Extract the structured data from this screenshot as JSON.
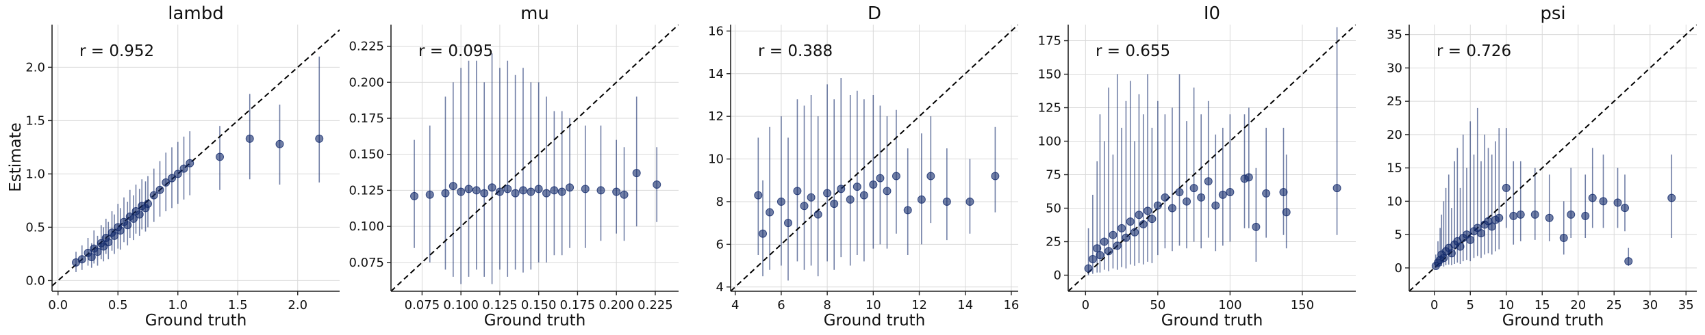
{
  "figure": {
    "xlabel": "Ground truth",
    "ylabel": "Estimate",
    "point_color": "#12296b",
    "line_color": "#12296b",
    "diag_color": "#000000",
    "grid_color": "#d9d9d9"
  },
  "chart_data": [
    {
      "type": "scatter",
      "title": "lambd",
      "r_text": "r = 0.952",
      "xlim": [
        -0.05,
        2.35
      ],
      "ylim": [
        -0.1,
        2.4
      ],
      "xticks": [
        0.0,
        0.5,
        1.0,
        1.5,
        2.0
      ],
      "xtick_labels": [
        "0.0",
        "0.5",
        "1.0",
        "1.5",
        "2.0"
      ],
      "yticks": [
        0.0,
        0.5,
        1.0,
        1.5,
        2.0
      ],
      "ytick_labels": [
        "0.0",
        "0.5",
        "1.0",
        "1.5",
        "2.0"
      ],
      "grid": true,
      "points": [
        {
          "x": 0.15,
          "y": 0.17,
          "lo": 0.08,
          "hi": 0.27
        },
        {
          "x": 0.2,
          "y": 0.2,
          "lo": 0.1,
          "hi": 0.33
        },
        {
          "x": 0.25,
          "y": 0.26,
          "lo": 0.14,
          "hi": 0.4
        },
        {
          "x": 0.28,
          "y": 0.22,
          "lo": 0.12,
          "hi": 0.35
        },
        {
          "x": 0.3,
          "y": 0.3,
          "lo": 0.16,
          "hi": 0.47
        },
        {
          "x": 0.33,
          "y": 0.27,
          "lo": 0.14,
          "hi": 0.42
        },
        {
          "x": 0.36,
          "y": 0.35,
          "lo": 0.2,
          "hi": 0.52
        },
        {
          "x": 0.38,
          "y": 0.32,
          "lo": 0.18,
          "hi": 0.5
        },
        {
          "x": 0.4,
          "y": 0.4,
          "lo": 0.25,
          "hi": 0.58
        },
        {
          "x": 0.42,
          "y": 0.36,
          "lo": 0.2,
          "hi": 0.55
        },
        {
          "x": 0.45,
          "y": 0.45,
          "lo": 0.28,
          "hi": 0.65
        },
        {
          "x": 0.47,
          "y": 0.42,
          "lo": 0.25,
          "hi": 0.62
        },
        {
          "x": 0.5,
          "y": 0.5,
          "lo": 0.3,
          "hi": 0.72
        },
        {
          "x": 0.52,
          "y": 0.47,
          "lo": 0.29,
          "hi": 0.68
        },
        {
          "x": 0.55,
          "y": 0.55,
          "lo": 0.36,
          "hi": 0.78
        },
        {
          "x": 0.58,
          "y": 0.52,
          "lo": 0.33,
          "hi": 0.74
        },
        {
          "x": 0.6,
          "y": 0.6,
          "lo": 0.4,
          "hi": 0.85
        },
        {
          "x": 0.63,
          "y": 0.58,
          "lo": 0.38,
          "hi": 0.8
        },
        {
          "x": 0.65,
          "y": 0.65,
          "lo": 0.44,
          "hi": 0.9
        },
        {
          "x": 0.68,
          "y": 0.62,
          "lo": 0.42,
          "hi": 0.86
        },
        {
          "x": 0.7,
          "y": 0.7,
          "lo": 0.48,
          "hi": 0.95
        },
        {
          "x": 0.73,
          "y": 0.68,
          "lo": 0.46,
          "hi": 0.93
        },
        {
          "x": 0.75,
          "y": 0.72,
          "lo": 0.5,
          "hi": 0.98
        },
        {
          "x": 0.8,
          "y": 0.8,
          "lo": 0.55,
          "hi": 1.05
        },
        {
          "x": 0.85,
          "y": 0.85,
          "lo": 0.6,
          "hi": 1.12
        },
        {
          "x": 0.9,
          "y": 0.92,
          "lo": 0.65,
          "hi": 1.2
        },
        {
          "x": 0.95,
          "y": 0.96,
          "lo": 0.68,
          "hi": 1.25
        },
        {
          "x": 1.0,
          "y": 1.0,
          "lo": 0.72,
          "hi": 1.3
        },
        {
          "x": 1.05,
          "y": 1.05,
          "lo": 0.76,
          "hi": 1.35
        },
        {
          "x": 1.1,
          "y": 1.1,
          "lo": 0.8,
          "hi": 1.4
        },
        {
          "x": 1.35,
          "y": 1.16,
          "lo": 0.85,
          "hi": 1.45
        },
        {
          "x": 1.6,
          "y": 1.33,
          "lo": 0.95,
          "hi": 1.75
        },
        {
          "x": 1.85,
          "y": 1.28,
          "lo": 0.9,
          "hi": 1.65
        },
        {
          "x": 2.18,
          "y": 1.33,
          "lo": 0.92,
          "hi": 2.1
        }
      ]
    },
    {
      "type": "scatter",
      "title": "mu",
      "r_text": "r = 0.095",
      "xlim": [
        0.055,
        0.24
      ],
      "ylim": [
        0.055,
        0.24
      ],
      "xticks": [
        0.075,
        0.1,
        0.125,
        0.15,
        0.175,
        0.2,
        0.225
      ],
      "xtick_labels": [
        "0.075",
        "0.100",
        "0.125",
        "0.150",
        "0.175",
        "0.200",
        "0.225"
      ],
      "yticks": [
        0.075,
        0.1,
        0.125,
        0.15,
        0.175,
        0.2,
        0.225
      ],
      "ytick_labels": [
        "0.075",
        "0.100",
        "0.125",
        "0.150",
        "0.175",
        "0.200",
        "0.225"
      ],
      "grid": true,
      "points": [
        {
          "x": 0.07,
          "y": 0.121,
          "lo": 0.085,
          "hi": 0.16
        },
        {
          "x": 0.08,
          "y": 0.122,
          "lo": 0.075,
          "hi": 0.17
        },
        {
          "x": 0.09,
          "y": 0.123,
          "lo": 0.07,
          "hi": 0.19
        },
        {
          "x": 0.095,
          "y": 0.128,
          "lo": 0.065,
          "hi": 0.2
        },
        {
          "x": 0.1,
          "y": 0.124,
          "lo": 0.06,
          "hi": 0.21
        },
        {
          "x": 0.105,
          "y": 0.126,
          "lo": 0.065,
          "hi": 0.215
        },
        {
          "x": 0.11,
          "y": 0.125,
          "lo": 0.07,
          "hi": 0.215
        },
        {
          "x": 0.115,
          "y": 0.123,
          "lo": 0.065,
          "hi": 0.2
        },
        {
          "x": 0.12,
          "y": 0.127,
          "lo": 0.06,
          "hi": 0.22
        },
        {
          "x": 0.125,
          "y": 0.124,
          "lo": 0.07,
          "hi": 0.21
        },
        {
          "x": 0.13,
          "y": 0.126,
          "lo": 0.065,
          "hi": 0.215
        },
        {
          "x": 0.135,
          "y": 0.123,
          "lo": 0.07,
          "hi": 0.205
        },
        {
          "x": 0.14,
          "y": 0.125,
          "lo": 0.068,
          "hi": 0.21
        },
        {
          "x": 0.145,
          "y": 0.124,
          "lo": 0.07,
          "hi": 0.2
        },
        {
          "x": 0.15,
          "y": 0.126,
          "lo": 0.075,
          "hi": 0.2
        },
        {
          "x": 0.155,
          "y": 0.123,
          "lo": 0.075,
          "hi": 0.19
        },
        {
          "x": 0.16,
          "y": 0.125,
          "lo": 0.08,
          "hi": 0.18
        },
        {
          "x": 0.165,
          "y": 0.124,
          "lo": 0.08,
          "hi": 0.18
        },
        {
          "x": 0.17,
          "y": 0.127,
          "lo": 0.085,
          "hi": 0.175
        },
        {
          "x": 0.18,
          "y": 0.126,
          "lo": 0.085,
          "hi": 0.17
        },
        {
          "x": 0.19,
          "y": 0.125,
          "lo": 0.09,
          "hi": 0.17
        },
        {
          "x": 0.2,
          "y": 0.124,
          "lo": 0.095,
          "hi": 0.16
        },
        {
          "x": 0.205,
          "y": 0.122,
          "lo": 0.09,
          "hi": 0.155
        },
        {
          "x": 0.213,
          "y": 0.137,
          "lo": 0.1,
          "hi": 0.19
        },
        {
          "x": 0.226,
          "y": 0.129,
          "lo": 0.103,
          "hi": 0.155
        }
      ]
    },
    {
      "type": "scatter",
      "title": "D",
      "r_text": "r = 0.388",
      "xlim": [
        3.8,
        16.3
      ],
      "ylim": [
        3.8,
        16.3
      ],
      "xticks": [
        4,
        6,
        8,
        10,
        12,
        14,
        16
      ],
      "xtick_labels": [
        "4",
        "6",
        "8",
        "10",
        "12",
        "14",
        "16"
      ],
      "yticks": [
        4,
        6,
        8,
        10,
        12,
        14,
        16
      ],
      "ytick_labels": [
        "4",
        "6",
        "8",
        "10",
        "12",
        "14",
        "16"
      ],
      "grid": true,
      "points": [
        {
          "x": 5.0,
          "y": 8.3,
          "lo": 5.5,
          "hi": 11.0
        },
        {
          "x": 5.2,
          "y": 6.5,
          "lo": 4.5,
          "hi": 9.0
        },
        {
          "x": 5.5,
          "y": 7.5,
          "lo": 4.8,
          "hi": 11.5
        },
        {
          "x": 6.0,
          "y": 8.0,
          "lo": 5.0,
          "hi": 12.0
        },
        {
          "x": 6.3,
          "y": 7.0,
          "lo": 4.3,
          "hi": 11.0
        },
        {
          "x": 6.7,
          "y": 8.5,
          "lo": 5.2,
          "hi": 12.8
        },
        {
          "x": 7.0,
          "y": 7.8,
          "lo": 4.8,
          "hi": 12.5
        },
        {
          "x": 7.3,
          "y": 8.2,
          "lo": 5.0,
          "hi": 13.0
        },
        {
          "x": 7.6,
          "y": 7.4,
          "lo": 4.5,
          "hi": 12.0
        },
        {
          "x": 8.0,
          "y": 8.4,
          "lo": 5.2,
          "hi": 13.5
        },
        {
          "x": 8.3,
          "y": 7.9,
          "lo": 4.8,
          "hi": 12.8
        },
        {
          "x": 8.6,
          "y": 8.6,
          "lo": 5.4,
          "hi": 13.8
        },
        {
          "x": 9.0,
          "y": 8.1,
          "lo": 5.0,
          "hi": 13.0
        },
        {
          "x": 9.3,
          "y": 8.7,
          "lo": 5.5,
          "hi": 13.2
        },
        {
          "x": 9.6,
          "y": 8.3,
          "lo": 5.2,
          "hi": 12.8
        },
        {
          "x": 10.0,
          "y": 8.8,
          "lo": 5.8,
          "hi": 13.0
        },
        {
          "x": 10.3,
          "y": 9.1,
          "lo": 6.0,
          "hi": 12.5
        },
        {
          "x": 10.6,
          "y": 8.5,
          "lo": 5.8,
          "hi": 12.0
        },
        {
          "x": 11.0,
          "y": 9.2,
          "lo": 6.5,
          "hi": 12.3
        },
        {
          "x": 11.5,
          "y": 7.6,
          "lo": 5.5,
          "hi": 10.5
        },
        {
          "x": 12.1,
          "y": 8.1,
          "lo": 6.0,
          "hi": 11.2
        },
        {
          "x": 12.5,
          "y": 9.2,
          "lo": 7.0,
          "hi": 12.0
        },
        {
          "x": 13.2,
          "y": 8.0,
          "lo": 6.2,
          "hi": 10.5
        },
        {
          "x": 14.2,
          "y": 8.0,
          "lo": 6.5,
          "hi": 10.0
        },
        {
          "x": 15.3,
          "y": 9.2,
          "lo": 7.5,
          "hi": 11.5
        }
      ]
    },
    {
      "type": "scatter",
      "title": "I0",
      "r_text": "r = 0.655",
      "xlim": [
        -12,
        187
      ],
      "ylim": [
        -12,
        187
      ],
      "xticks": [
        0,
        50,
        100,
        150
      ],
      "xtick_labels": [
        "0",
        "50",
        "100",
        "150"
      ],
      "yticks": [
        0,
        25,
        50,
        75,
        100,
        125,
        150,
        175
      ],
      "ytick_labels": [
        "0",
        "25",
        "50",
        "75",
        "100",
        "125",
        "150",
        "175"
      ],
      "grid": true,
      "points": [
        {
          "x": 2,
          "y": 5,
          "lo": 0,
          "hi": 35
        },
        {
          "x": 5,
          "y": 12,
          "lo": 1,
          "hi": 60
        },
        {
          "x": 8,
          "y": 20,
          "lo": 2,
          "hi": 85
        },
        {
          "x": 10,
          "y": 15,
          "lo": 2,
          "hi": 120
        },
        {
          "x": 13,
          "y": 25,
          "lo": 4,
          "hi": 100
        },
        {
          "x": 16,
          "y": 18,
          "lo": 3,
          "hi": 140
        },
        {
          "x": 19,
          "y": 30,
          "lo": 5,
          "hi": 90
        },
        {
          "x": 22,
          "y": 22,
          "lo": 4,
          "hi": 150
        },
        {
          "x": 25,
          "y": 35,
          "lo": 6,
          "hi": 110
        },
        {
          "x": 28,
          "y": 28,
          "lo": 5,
          "hi": 130
        },
        {
          "x": 31,
          "y": 40,
          "lo": 8,
          "hi": 145
        },
        {
          "x": 34,
          "y": 32,
          "lo": 7,
          "hi": 100
        },
        {
          "x": 37,
          "y": 45,
          "lo": 9,
          "hi": 135
        },
        {
          "x": 40,
          "y": 38,
          "lo": 8,
          "hi": 120
        },
        {
          "x": 43,
          "y": 48,
          "lo": 10,
          "hi": 150
        },
        {
          "x": 46,
          "y": 42,
          "lo": 9,
          "hi": 110
        },
        {
          "x": 50,
          "y": 52,
          "lo": 15,
          "hi": 130
        },
        {
          "x": 55,
          "y": 58,
          "lo": 20,
          "hi": 120
        },
        {
          "x": 60,
          "y": 50,
          "lo": 18,
          "hi": 125
        },
        {
          "x": 65,
          "y": 62,
          "lo": 22,
          "hi": 150
        },
        {
          "x": 70,
          "y": 55,
          "lo": 20,
          "hi": 115
        },
        {
          "x": 75,
          "y": 65,
          "lo": 25,
          "hi": 140
        },
        {
          "x": 80,
          "y": 58,
          "lo": 20,
          "hi": 120
        },
        {
          "x": 85,
          "y": 70,
          "lo": 28,
          "hi": 130
        },
        {
          "x": 90,
          "y": 52,
          "lo": 18,
          "hi": 105
        },
        {
          "x": 95,
          "y": 60,
          "lo": 22,
          "hi": 110
        },
        {
          "x": 100,
          "y": 62,
          "lo": 25,
          "hi": 120
        },
        {
          "x": 110,
          "y": 72,
          "lo": 35,
          "hi": 120
        },
        {
          "x": 113,
          "y": 73,
          "lo": 35,
          "hi": 125
        },
        {
          "x": 118,
          "y": 36,
          "lo": 10,
          "hi": 80
        },
        {
          "x": 125,
          "y": 61,
          "lo": 28,
          "hi": 110
        },
        {
          "x": 137,
          "y": 62,
          "lo": 30,
          "hi": 110
        },
        {
          "x": 139,
          "y": 47,
          "lo": 20,
          "hi": 90
        },
        {
          "x": 174,
          "y": 65,
          "lo": 30,
          "hi": 185
        }
      ]
    },
    {
      "type": "scatter",
      "title": "psi",
      "r_text": "r = 0.726",
      "xlim": [
        -3.5,
        36.5
      ],
      "ylim": [
        -3.5,
        36.5
      ],
      "xticks": [
        0,
        5,
        10,
        15,
        20,
        25,
        30,
        35
      ],
      "xtick_labels": [
        "0",
        "5",
        "10",
        "15",
        "20",
        "25",
        "30",
        "35"
      ],
      "yticks": [
        0,
        5,
        10,
        15,
        20,
        25,
        30,
        35
      ],
      "ytick_labels": [
        "0",
        "5",
        "10",
        "15",
        "20",
        "25",
        "30",
        "35"
      ],
      "grid": true,
      "points": [
        {
          "x": 0.2,
          "y": 0.3,
          "lo": 0,
          "hi": 2
        },
        {
          "x": 0.5,
          "y": 0.8,
          "lo": 0.1,
          "hi": 4
        },
        {
          "x": 0.8,
          "y": 1.2,
          "lo": 0.2,
          "hi": 6
        },
        {
          "x": 1.0,
          "y": 2.0,
          "lo": 0.3,
          "hi": 8
        },
        {
          "x": 1.3,
          "y": 1.5,
          "lo": 0.2,
          "hi": 10
        },
        {
          "x": 1.6,
          "y": 2.5,
          "lo": 0.4,
          "hi": 12
        },
        {
          "x": 2.0,
          "y": 3.0,
          "lo": 0.5,
          "hi": 14
        },
        {
          "x": 2.4,
          "y": 2.2,
          "lo": 0.4,
          "hi": 9
        },
        {
          "x": 2.8,
          "y": 3.5,
          "lo": 0.6,
          "hi": 16
        },
        {
          "x": 3.2,
          "y": 4.0,
          "lo": 0.8,
          "hi": 18
        },
        {
          "x": 3.6,
          "y": 3.2,
          "lo": 0.6,
          "hi": 12
        },
        {
          "x": 4.0,
          "y": 4.5,
          "lo": 1.0,
          "hi": 20
        },
        {
          "x": 4.5,
          "y": 5.0,
          "lo": 1.2,
          "hi": 15
        },
        {
          "x": 5.0,
          "y": 4.2,
          "lo": 1.0,
          "hi": 22
        },
        {
          "x": 5.5,
          "y": 5.5,
          "lo": 1.5,
          "hi": 17
        },
        {
          "x": 6.0,
          "y": 6.0,
          "lo": 1.8,
          "hi": 24
        },
        {
          "x": 6.5,
          "y": 5.2,
          "lo": 1.5,
          "hi": 16
        },
        {
          "x": 7.0,
          "y": 6.5,
          "lo": 2.0,
          "hi": 20
        },
        {
          "x": 7.5,
          "y": 7.0,
          "lo": 2.2,
          "hi": 18
        },
        {
          "x": 8.0,
          "y": 6.2,
          "lo": 2.0,
          "hi": 17
        },
        {
          "x": 8.5,
          "y": 7.2,
          "lo": 2.5,
          "hi": 19
        },
        {
          "x": 9.0,
          "y": 7.5,
          "lo": 2.8,
          "hi": 21
        },
        {
          "x": 10.0,
          "y": 12.0,
          "lo": 6.0,
          "hi": 21
        },
        {
          "x": 11.0,
          "y": 7.8,
          "lo": 3.5,
          "hi": 16
        },
        {
          "x": 12.0,
          "y": 8.0,
          "lo": 4.0,
          "hi": 16
        },
        {
          "x": 14.0,
          "y": 8.0,
          "lo": 4.2,
          "hi": 15
        },
        {
          "x": 16.0,
          "y": 7.5,
          "lo": 4.0,
          "hi": 14
        },
        {
          "x": 18.0,
          "y": 4.5,
          "lo": 2.0,
          "hi": 10
        },
        {
          "x": 19.0,
          "y": 8.0,
          "lo": 4.5,
          "hi": 15
        },
        {
          "x": 21.0,
          "y": 7.8,
          "lo": 4.5,
          "hi": 14
        },
        {
          "x": 22.0,
          "y": 10.5,
          "lo": 6.0,
          "hi": 18
        },
        {
          "x": 23.5,
          "y": 10.0,
          "lo": 6.0,
          "hi": 17
        },
        {
          "x": 25.5,
          "y": 9.8,
          "lo": 6.0,
          "hi": 15
        },
        {
          "x": 26.5,
          "y": 9.0,
          "lo": 5.5,
          "hi": 14
        },
        {
          "x": 27.0,
          "y": 1.0,
          "lo": 0.3,
          "hi": 3
        },
        {
          "x": 33.0,
          "y": 10.5,
          "lo": 4.5,
          "hi": 17
        }
      ]
    }
  ]
}
